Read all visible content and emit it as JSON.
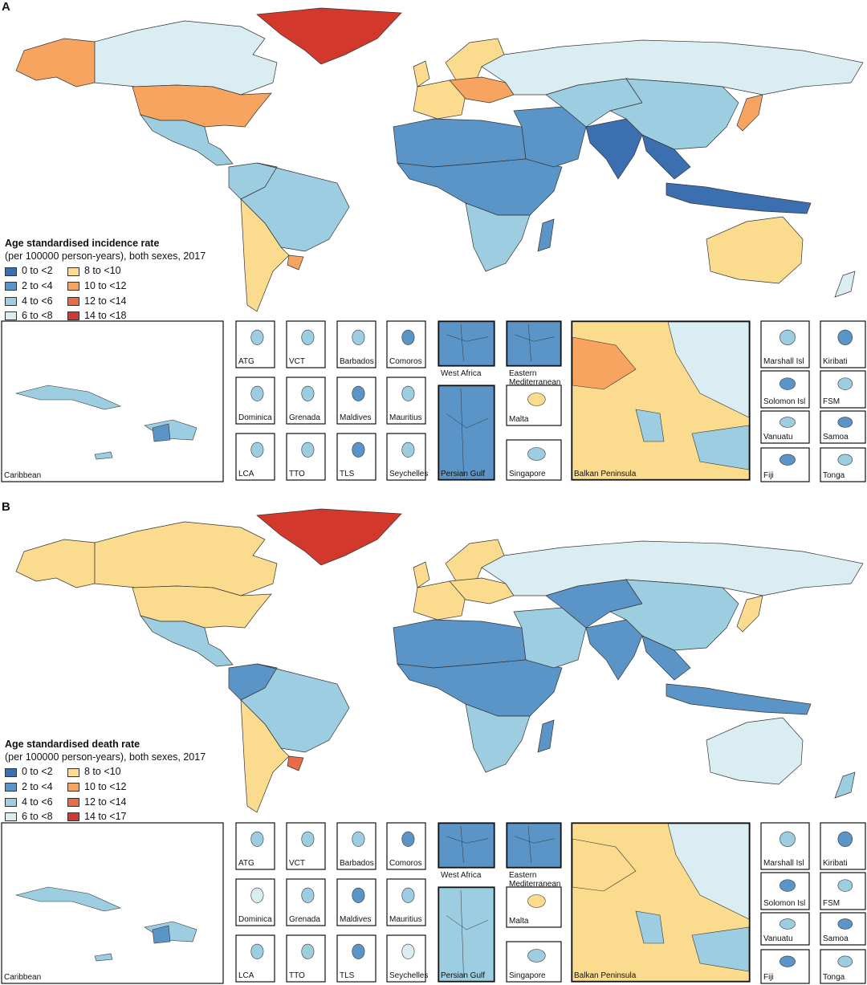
{
  "panels": [
    {
      "letter": "A",
      "legend_title": "Age standardised incidence rate",
      "legend_subtitle": "(per 100000 person-years), both sexes, 2017",
      "legend": [
        {
          "label": "0 to <2",
          "color": "#3c6fb0"
        },
        {
          "label": "2 to <4",
          "color": "#5b95c8"
        },
        {
          "label": "4 to <6",
          "color": "#9dcde0"
        },
        {
          "label": "6 to <8",
          "color": "#d9edf2"
        },
        {
          "label": "8 to <10",
          "color": "#fbdc8e"
        },
        {
          "label": "10 to <12",
          "color": "#f6a460"
        },
        {
          "label": "12 to <14",
          "color": "#ea6b47"
        },
        {
          "label": "14 to <18",
          "color": "#d2382b"
        }
      ],
      "regions": {
        "greenland": "#d2382b",
        "alaska": "#f6a460",
        "canada": "#d9edf2",
        "usa": "#f6a460",
        "mexico_central": "#9dcde0",
        "south_america_north": "#9dcde0",
        "brazil": "#9dcde0",
        "argentina": "#fbdc8e",
        "uruguay": "#f6a460",
        "europe_west": "#fbdc8e",
        "europe_east": "#f6a460",
        "scandinavia": "#fbdc8e",
        "russia": "#d9edf2",
        "north_africa": "#5b95c8",
        "africa_central": "#5b95c8",
        "southern_africa": "#9dcde0",
        "madagascar": "#5b95c8",
        "middle_east": "#5b95c8",
        "central_asia": "#9dcde0",
        "china": "#9dcde0",
        "india": "#3c6fb0",
        "southeast_asia": "#3c6fb0",
        "japan": "#f6a460",
        "indonesia": "#3c6fb0",
        "australia": "#fbdc8e",
        "new_zealand": "#d9edf2",
        "uk": "#fbdc8e"
      },
      "insets": [
        {
          "name": "Caribbean",
          "color": "#9dcde0"
        },
        {
          "name": "ATG",
          "color": "#9dcde0"
        },
        {
          "name": "VCT",
          "color": "#9dcde0"
        },
        {
          "name": "Barbados",
          "color": "#9dcde0"
        },
        {
          "name": "Comoros",
          "color": "#5b95c8"
        },
        {
          "name": "Dominica",
          "color": "#9dcde0"
        },
        {
          "name": "Grenada",
          "color": "#9dcde0"
        },
        {
          "name": "Maldives",
          "color": "#5b95c8"
        },
        {
          "name": "Mauritius",
          "color": "#9dcde0"
        },
        {
          "name": "LCA",
          "color": "#9dcde0"
        },
        {
          "name": "TTO",
          "color": "#9dcde0"
        },
        {
          "name": "TLS",
          "color": "#5b95c8"
        },
        {
          "name": "Seychelles",
          "color": "#9dcde0"
        },
        {
          "name": "West Africa",
          "color": "#5b95c8"
        },
        {
          "name": "Eastern Mediterranean",
          "color": "#5b95c8"
        },
        {
          "name": "Persian Gulf",
          "color": "#5b95c8"
        },
        {
          "name": "Malta",
          "color": "#fbdc8e"
        },
        {
          "name": "Singapore",
          "color": "#9dcde0"
        },
        {
          "name": "Balkan Peninsula",
          "color": "#fbdc8e"
        },
        {
          "name": "Marshall Isl",
          "color": "#9dcde0"
        },
        {
          "name": "Kiribati",
          "color": "#5b95c8"
        },
        {
          "name": "Solomon Isl",
          "color": "#5b95c8"
        },
        {
          "name": "FSM",
          "color": "#9dcde0"
        },
        {
          "name": "Vanuatu",
          "color": "#9dcde0"
        },
        {
          "name": "Samoa",
          "color": "#5b95c8"
        },
        {
          "name": "Fiji",
          "color": "#5b95c8"
        },
        {
          "name": "Tonga",
          "color": "#9dcde0"
        }
      ]
    },
    {
      "letter": "B",
      "legend_title": "Age standardised death rate",
      "legend_subtitle": "(per 100000 person-years), both sexes, 2017",
      "legend": [
        {
          "label": "0 to <2",
          "color": "#3c6fb0"
        },
        {
          "label": "2 to <4",
          "color": "#5b95c8"
        },
        {
          "label": "4 to <6",
          "color": "#9dcde0"
        },
        {
          "label": "6 to <8",
          "color": "#d9edf2"
        },
        {
          "label": "8 to <10",
          "color": "#fbdc8e"
        },
        {
          "label": "10 to <12",
          "color": "#f6a460"
        },
        {
          "label": "12 to <14",
          "color": "#ea6b47"
        },
        {
          "label": "14 to <17",
          "color": "#d2382b"
        }
      ],
      "regions": {
        "greenland": "#d2382b",
        "alaska": "#fbdc8e",
        "canada": "#fbdc8e",
        "usa": "#fbdc8e",
        "mexico_central": "#9dcde0",
        "south_america_north": "#5b95c8",
        "brazil": "#9dcde0",
        "argentina": "#fbdc8e",
        "uruguay": "#ea6b47",
        "europe_west": "#fbdc8e",
        "europe_east": "#fbdc8e",
        "scandinavia": "#fbdc8e",
        "russia": "#d9edf2",
        "north_africa": "#5b95c8",
        "africa_central": "#5b95c8",
        "southern_africa": "#9dcde0",
        "madagascar": "#5b95c8",
        "middle_east": "#9dcde0",
        "central_asia": "#5b95c8",
        "china": "#9dcde0",
        "india": "#5b95c8",
        "southeast_asia": "#5b95c8",
        "japan": "#fbdc8e",
        "indonesia": "#5b95c8",
        "australia": "#d9edf2",
        "new_zealand": "#9dcde0",
        "uk": "#fbdc8e"
      },
      "insets": [
        {
          "name": "Caribbean",
          "color": "#9dcde0"
        },
        {
          "name": "ATG",
          "color": "#9dcde0"
        },
        {
          "name": "VCT",
          "color": "#9dcde0"
        },
        {
          "name": "Barbados",
          "color": "#9dcde0"
        },
        {
          "name": "Comoros",
          "color": "#5b95c8"
        },
        {
          "name": "Dominica",
          "color": "#d9edf2"
        },
        {
          "name": "Grenada",
          "color": "#9dcde0"
        },
        {
          "name": "Maldives",
          "color": "#5b95c8"
        },
        {
          "name": "Mauritius",
          "color": "#9dcde0"
        },
        {
          "name": "LCA",
          "color": "#9dcde0"
        },
        {
          "name": "TTO",
          "color": "#9dcde0"
        },
        {
          "name": "TLS",
          "color": "#5b95c8"
        },
        {
          "name": "Seychelles",
          "color": "#d9edf2"
        },
        {
          "name": "West Africa",
          "color": "#5b95c8"
        },
        {
          "name": "Eastern Mediterranean",
          "color": "#5b95c8"
        },
        {
          "name": "Persian Gulf",
          "color": "#9dcde0"
        },
        {
          "name": "Malta",
          "color": "#fbdc8e"
        },
        {
          "name": "Singapore",
          "color": "#9dcde0"
        },
        {
          "name": "Balkan Peninsula",
          "color": "#fbdc8e"
        },
        {
          "name": "Marshall Isl",
          "color": "#9dcde0"
        },
        {
          "name": "Kiribati",
          "color": "#5b95c8"
        },
        {
          "name": "Solomon Isl",
          "color": "#5b95c8"
        },
        {
          "name": "FSM",
          "color": "#9dcde0"
        },
        {
          "name": "Vanuatu",
          "color": "#9dcde0"
        },
        {
          "name": "Samoa",
          "color": "#5b95c8"
        },
        {
          "name": "Fiji",
          "color": "#5b95c8"
        },
        {
          "name": "Tonga",
          "color": "#9dcde0"
        }
      ]
    }
  ]
}
